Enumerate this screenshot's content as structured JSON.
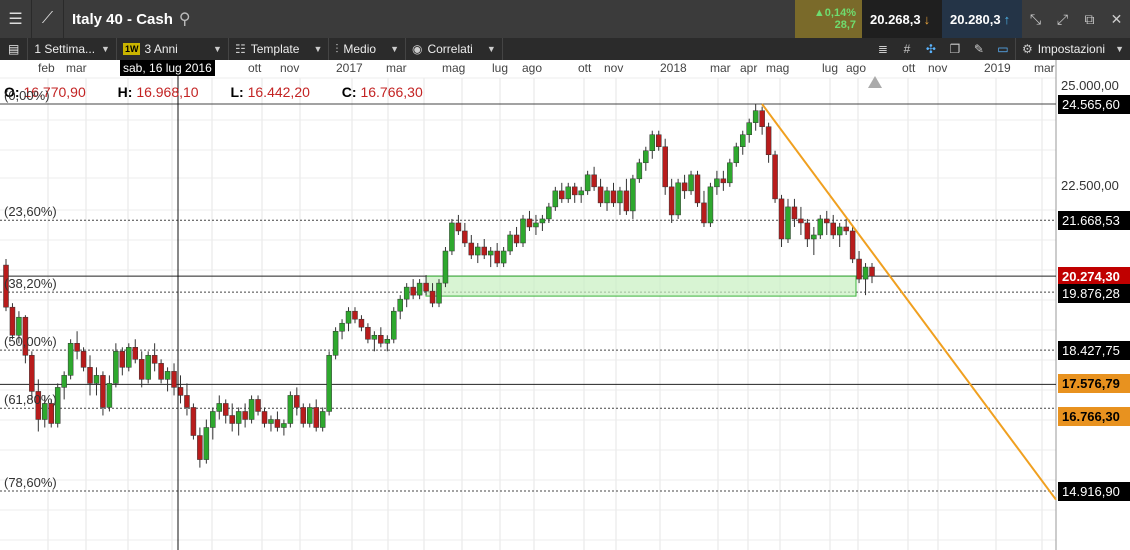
{
  "header": {
    "instrument": "Italy 40 - Cash",
    "change_pct": "▲0,14%",
    "change_abs": "28,7",
    "sell_price": "20.268,3",
    "buy_price": "20.280,3"
  },
  "toolbar": {
    "timeframe": "1 Settima...",
    "timeframe_badge": "1W",
    "range": "3 Anni",
    "template": "Template",
    "indicator": "Medio",
    "correlated": "Correlati",
    "settings": "Impostazioni"
  },
  "xaxis": {
    "labels": [
      "feb",
      "mar",
      "ott",
      "nov",
      "2017",
      "mar",
      "mag",
      "lug",
      "ago",
      "ott",
      "nov",
      "2018",
      "mar",
      "apr",
      "mag",
      "lug",
      "ago",
      "ott",
      "nov",
      "2019",
      "mar"
    ],
    "crosshair_date": "sab, 16 lug 2016"
  },
  "ohlc": {
    "o_label": "O:",
    "o_value": "16.770,90",
    "h_label": "H:",
    "h_value": "16.968,10",
    "l_label": "L:",
    "l_value": "16.442,20",
    "c_label": "C:",
    "c_value": "16.766,30"
  },
  "fibonacci": [
    {
      "label": "(0,00%)",
      "price": 24565.6
    },
    {
      "label": "(23,60%)",
      "price": 21668.53
    },
    {
      "label": "(38,20%)",
      "price": 19876.28
    },
    {
      "label": "(50,00%)",
      "price": 18427.75
    },
    {
      "label": "(61,80%)",
      "price": 16979.22
    },
    {
      "label": "(78,60%)",
      "price": 14916.9
    }
  ],
  "yaxis": {
    "ticks": [
      "25.000,00",
      "22.500,00"
    ],
    "levels": [
      "24.565,60",
      "21.668,53",
      "19.876,28",
      "18.427,75",
      "14.916,90"
    ],
    "current_price": "20.274,30",
    "marker_1": "17.576,79",
    "marker_2": "16.766,30"
  },
  "colors": {
    "bull": "#2ea82e",
    "bear": "#b81c1c",
    "trendline": "#f0a020",
    "zone_fill": "#c8f0c0",
    "zone_stroke": "#3bb33b"
  },
  "chart_data": {
    "type": "candlestick",
    "title": "Italy 40 - Cash",
    "ylim": [
      14300,
      25400
    ],
    "candles": [
      [
        20550,
        20700,
        19400,
        19500
      ],
      [
        19500,
        19600,
        18700,
        18800
      ],
      [
        18800,
        19400,
        18600,
        19250
      ],
      [
        19250,
        19300,
        18100,
        18300
      ],
      [
        18300,
        18400,
        17200,
        17400
      ],
      [
        17400,
        17700,
        16400,
        16700
      ],
      [
        16700,
        17300,
        16500,
        17100
      ],
      [
        17100,
        17200,
        16500,
        16600
      ],
      [
        16600,
        17600,
        16500,
        17500
      ],
      [
        17500,
        17900,
        17200,
        17800
      ],
      [
        17800,
        18700,
        17700,
        18600
      ],
      [
        18600,
        18900,
        18200,
        18400
      ],
      [
        18400,
        18500,
        17900,
        18000
      ],
      [
        18000,
        18300,
        17300,
        17600
      ],
      [
        17600,
        18000,
        17300,
        17800
      ],
      [
        17800,
        17900,
        16800,
        17000
      ],
      [
        17000,
        17800,
        16900,
        17600
      ],
      [
        17600,
        18600,
        17500,
        18400
      ],
      [
        18400,
        18500,
        17800,
        18000
      ],
      [
        18000,
        18600,
        17900,
        18500
      ],
      [
        18500,
        18700,
        18100,
        18200
      ],
      [
        18200,
        18400,
        17500,
        17700
      ],
      [
        17700,
        18400,
        17600,
        18300
      ],
      [
        18300,
        18600,
        17900,
        18100
      ],
      [
        18100,
        18200,
        17600,
        17700
      ],
      [
        17700,
        18000,
        17400,
        17900
      ],
      [
        17900,
        18100,
        17300,
        17500
      ],
      [
        17500,
        17800,
        17100,
        17300
      ],
      [
        17300,
        17600,
        16800,
        17000
      ],
      [
        17000,
        17100,
        16200,
        16300
      ],
      [
        16300,
        16500,
        15500,
        15700
      ],
      [
        15700,
        16700,
        15600,
        16500
      ],
      [
        16500,
        17000,
        16200,
        16900
      ],
      [
        16900,
        17300,
        16700,
        17100
      ],
      [
        17100,
        17200,
        16600,
        16800
      ],
      [
        16800,
        17100,
        16400,
        16600
      ],
      [
        16600,
        17000,
        16300,
        16900
      ],
      [
        16900,
        17100,
        16500,
        16700
      ],
      [
        16700,
        17300,
        16600,
        17200
      ],
      [
        17200,
        17300,
        16800,
        16900
      ],
      [
        16900,
        17000,
        16500,
        16600
      ],
      [
        16600,
        16800,
        16400,
        16700
      ],
      [
        16700,
        16900,
        16400,
        16500
      ],
      [
        16500,
        16700,
        16300,
        16600
      ],
      [
        16600,
        17400,
        16500,
        17300
      ],
      [
        17300,
        17500,
        16800,
        17000
      ],
      [
        17000,
        17100,
        16500,
        16600
      ],
      [
        16600,
        17100,
        16500,
        17000
      ],
      [
        17000,
        17200,
        16400,
        16500
      ],
      [
        16500,
        17000,
        16400,
        16900
      ],
      [
        16900,
        18400,
        16800,
        18300
      ],
      [
        18300,
        19000,
        18200,
        18900
      ],
      [
        18900,
        19200,
        18700,
        19100
      ],
      [
        19100,
        19500,
        18900,
        19400
      ],
      [
        19400,
        19500,
        19100,
        19200
      ],
      [
        19200,
        19300,
        18900,
        19000
      ],
      [
        19000,
        19100,
        18600,
        18700
      ],
      [
        18700,
        18900,
        18400,
        18800
      ],
      [
        18800,
        19000,
        18500,
        18600
      ],
      [
        18600,
        18800,
        18400,
        18700
      ],
      [
        18700,
        19500,
        18600,
        19400
      ],
      [
        19400,
        19800,
        19200,
        19700
      ],
      [
        19700,
        20100,
        19500,
        20000
      ],
      [
        20000,
        20200,
        19700,
        19800
      ],
      [
        19800,
        20200,
        19700,
        20100
      ],
      [
        20100,
        20300,
        19800,
        19900
      ],
      [
        19900,
        20100,
        19500,
        19600
      ],
      [
        19600,
        20200,
        19500,
        20100
      ],
      [
        20100,
        21000,
        20000,
        20900
      ],
      [
        20900,
        21700,
        20800,
        21600
      ],
      [
        21600,
        21800,
        21300,
        21400
      ],
      [
        21400,
        21600,
        21000,
        21100
      ],
      [
        21100,
        21300,
        20700,
        20800
      ],
      [
        20800,
        21100,
        20600,
        21000
      ],
      [
        21000,
        21200,
        20700,
        20800
      ],
      [
        20800,
        21000,
        20500,
        20900
      ],
      [
        20900,
        21100,
        20500,
        20600
      ],
      [
        20600,
        21000,
        20500,
        20900
      ],
      [
        20900,
        21400,
        20800,
        21300
      ],
      [
        21300,
        21500,
        21000,
        21100
      ],
      [
        21100,
        21800,
        21000,
        21700
      ],
      [
        21700,
        21900,
        21400,
        21500
      ],
      [
        21500,
        21800,
        21300,
        21600
      ],
      [
        21600,
        21800,
        21400,
        21700
      ],
      [
        21700,
        22100,
        21600,
        22000
      ],
      [
        22000,
        22500,
        21900,
        22400
      ],
      [
        22400,
        22600,
        22100,
        22200
      ],
      [
        22200,
        22600,
        22100,
        22500
      ],
      [
        22500,
        22600,
        22100,
        22300
      ],
      [
        22300,
        22500,
        22100,
        22400
      ],
      [
        22400,
        22900,
        22300,
        22800
      ],
      [
        22800,
        23000,
        22400,
        22500
      ],
      [
        22500,
        22700,
        22000,
        22100
      ],
      [
        22100,
        22500,
        21900,
        22400
      ],
      [
        22400,
        22600,
        22000,
        22100
      ],
      [
        22100,
        22500,
        21800,
        22400
      ],
      [
        22400,
        22700,
        21800,
        21900
      ],
      [
        21900,
        22800,
        21700,
        22700
      ],
      [
        22700,
        23200,
        22600,
        23100
      ],
      [
        23100,
        23500,
        22900,
        23400
      ],
      [
        23400,
        23900,
        23200,
        23800
      ],
      [
        23800,
        23900,
        23400,
        23500
      ],
      [
        23500,
        23700,
        22300,
        22500
      ],
      [
        22500,
        22700,
        21600,
        21800
      ],
      [
        21800,
        22700,
        21700,
        22600
      ],
      [
        22600,
        22800,
        22200,
        22400
      ],
      [
        22400,
        22900,
        22300,
        22800
      ],
      [
        22800,
        22900,
        22000,
        22100
      ],
      [
        22100,
        22400,
        21500,
        21600
      ],
      [
        21600,
        22600,
        21500,
        22500
      ],
      [
        22500,
        22900,
        22300,
        22700
      ],
      [
        22700,
        22900,
        22400,
        22600
      ],
      [
        22600,
        23200,
        22500,
        23100
      ],
      [
        23100,
        23600,
        23000,
        23500
      ],
      [
        23500,
        23900,
        23300,
        23800
      ],
      [
        23800,
        24200,
        23600,
        24100
      ],
      [
        24100,
        24565,
        23900,
        24400
      ],
      [
        24400,
        24500,
        23800,
        24000
      ],
      [
        24000,
        24100,
        23100,
        23300
      ],
      [
        23300,
        23400,
        22100,
        22200
      ],
      [
        22200,
        22300,
        21000,
        21200
      ],
      [
        21200,
        22200,
        21100,
        22000
      ],
      [
        22000,
        22200,
        21500,
        21700
      ],
      [
        21700,
        22000,
        21300,
        21600
      ],
      [
        21600,
        21700,
        21000,
        21200
      ],
      [
        21200,
        21500,
        20800,
        21300
      ],
      [
        21300,
        21800,
        21200,
        21700
      ],
      [
        21700,
        21900,
        21300,
        21600
      ],
      [
        21600,
        21800,
        21200,
        21300
      ],
      [
        21300,
        21600,
        21000,
        21500
      ],
      [
        21500,
        21700,
        21300,
        21400
      ],
      [
        21400,
        21500,
        20600,
        20700
      ],
      [
        20700,
        20900,
        20100,
        20200
      ],
      [
        20200,
        20600,
        19800,
        20500
      ],
      [
        20500,
        20600,
        20100,
        20274
      ]
    ],
    "fib_levels_pct": [
      "0,00%",
      "23,60%",
      "38,20%",
      "50,00%",
      "61,80%",
      "78,60%"
    ],
    "support_zone": [
      19876,
      20274
    ],
    "trendline_points": [
      [
        24565,
        "2018-apr"
      ],
      [
        14916,
        "2019-mar"
      ]
    ],
    "grid": true
  }
}
